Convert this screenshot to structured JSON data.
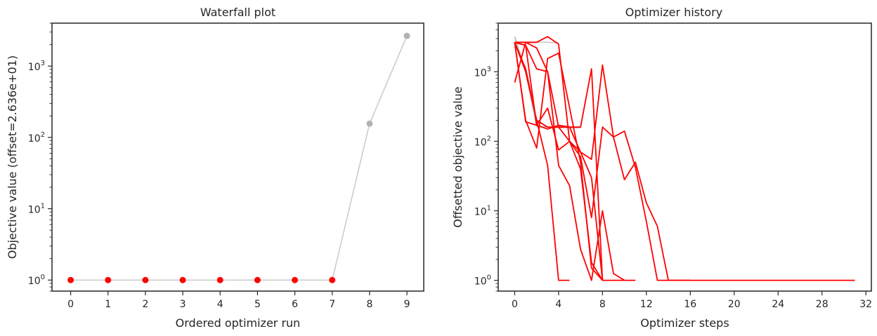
{
  "chart_data": [
    {
      "type": "scatter",
      "title": "Waterfall plot",
      "xlabel": "Ordered optimizer run",
      "ylabel": "Objective value (offset=2.636e+01)",
      "yscale": "log",
      "xlim": [
        -0.5,
        9.45
      ],
      "ylim": [
        0.7,
        4000
      ],
      "xticks": [
        0,
        1,
        2,
        3,
        4,
        5,
        6,
        7,
        8,
        9
      ],
      "yticks": [
        {
          "value": 1,
          "base": "10",
          "exp": "0"
        },
        {
          "value": 10,
          "base": "10",
          "exp": "1"
        },
        {
          "value": 100,
          "base": "10",
          "exp": "2"
        },
        {
          "value": 1000,
          "base": "10",
          "exp": "3"
        }
      ],
      "x": [
        0,
        1,
        2,
        3,
        4,
        5,
        6,
        7,
        8,
        9
      ],
      "y": [
        1,
        1,
        1,
        1,
        1,
        1,
        1,
        1,
        156,
        2650
      ],
      "point_colors": [
        "#ff0000",
        "#ff0000",
        "#ff0000",
        "#ff0000",
        "#ff0000",
        "#ff0000",
        "#ff0000",
        "#ff0000",
        "#b3b3b3",
        "#b3b3b3"
      ],
      "line_color": "#cccccc"
    },
    {
      "type": "line",
      "title": "Optimizer history",
      "xlabel": "Optimizer steps",
      "ylabel": "Offsetted objective value",
      "yscale": "log",
      "xlim": [
        -1.5,
        32.5
      ],
      "ylim": [
        0.7,
        5000
      ],
      "xticks": [
        0,
        4,
        8,
        12,
        16,
        20,
        24,
        28,
        32
      ],
      "yticks": [
        {
          "value": 1,
          "base": "10",
          "exp": "0"
        },
        {
          "value": 10,
          "base": "10",
          "exp": "1"
        },
        {
          "value": 100,
          "base": "10",
          "exp": "2"
        },
        {
          "value": 1000,
          "base": "10",
          "exp": "3"
        }
      ],
      "series": [
        {
          "color": "#bbbbbb",
          "x": [
            0,
            1,
            2,
            3,
            4,
            5,
            6
          ],
          "y": [
            3200,
            1000,
            165,
            160,
            158,
            157,
            157
          ]
        },
        {
          "color": "#cccccc",
          "x": [
            0,
            1,
            2,
            3,
            4
          ],
          "y": [
            2650,
            2650,
            2650,
            2650,
            2600
          ]
        },
        {
          "color": "#ff0000",
          "x": [
            0,
            1,
            2,
            3,
            4,
            5,
            6,
            7,
            8
          ],
          "y": [
            700,
            2650,
            2650,
            3200,
            2500,
            100,
            70,
            30,
            1
          ]
        },
        {
          "color": "#ff0000",
          "x": [
            0,
            1,
            2,
            3,
            4,
            5,
            6,
            7,
            8,
            9,
            10,
            11
          ],
          "y": [
            2650,
            1000,
            200,
            160,
            160,
            160,
            160,
            1100,
            1,
            1,
            1,
            1
          ]
        },
        {
          "color": "#ff0000",
          "x": [
            0,
            1,
            2,
            3,
            4,
            5,
            6,
            7,
            8,
            9,
            10,
            11,
            12,
            13,
            14,
            16
          ],
          "y": [
            2650,
            190,
            170,
            150,
            170,
            160,
            70,
            55,
            1250,
            115,
            140,
            42,
            7,
            1,
            1,
            1
          ]
        },
        {
          "color": "#ff0000",
          "x": [
            0,
            1,
            2,
            3,
            4,
            5,
            6,
            7,
            8,
            9,
            10,
            11,
            12,
            13,
            14,
            16,
            20,
            24,
            28,
            31
          ],
          "y": [
            2650,
            2400,
            170,
            300,
            75,
            100,
            60,
            8,
            160,
            115,
            28,
            50,
            13,
            6,
            1,
            1,
            1,
            1,
            1,
            1
          ]
        },
        {
          "color": "#ff0000",
          "x": [
            0,
            1,
            2,
            3,
            4,
            6,
            7,
            8
          ],
          "y": [
            2650,
            200,
            80,
            1550,
            1850,
            50,
            1.5,
            1
          ]
        },
        {
          "color": "#ff0000",
          "x": [
            0,
            1,
            2,
            3,
            4,
            5,
            6,
            7,
            8,
            9,
            10
          ],
          "y": [
            2650,
            2650,
            2200,
            1000,
            45,
            23,
            2.8,
            1,
            10,
            1.25,
            1
          ]
        },
        {
          "color": "#ff0000",
          "x": [
            0,
            1,
            2,
            3,
            4,
            5
          ],
          "y": [
            2650,
            1100,
            200,
            45,
            1,
            1
          ]
        },
        {
          "color": "#ff0000",
          "x": [
            0,
            1,
            2,
            3,
            4,
            5,
            6,
            7,
            8
          ],
          "y": [
            2650,
            2400,
            1100,
            1000,
            160,
            100,
            40,
            1.8,
            1
          ]
        }
      ]
    }
  ]
}
